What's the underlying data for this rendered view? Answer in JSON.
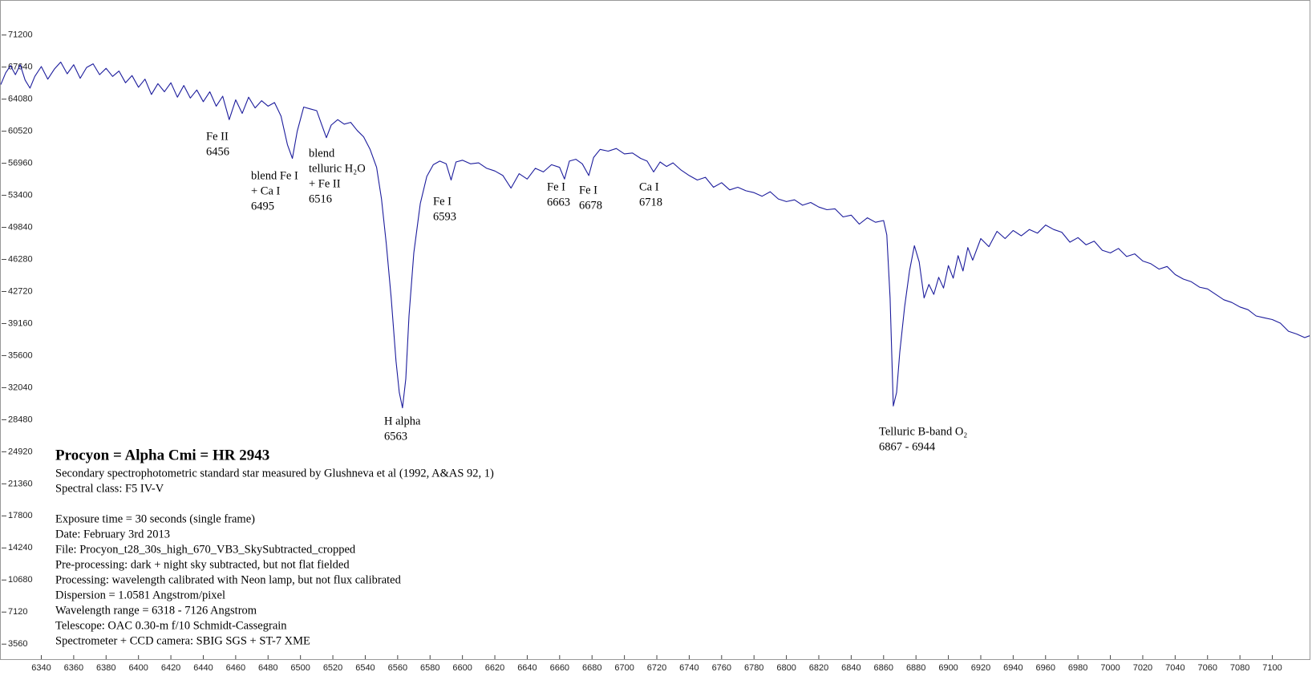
{
  "chart_data": {
    "type": "line",
    "title": "Procyon = Alpha Cmi = HR 2943",
    "notes": [
      "Secondary spectrophotometric standard star measured by Glushneva et al (1992, A&AS 92, 1)",
      "Spectral class: F5 IV-V",
      "Exposure time =  30 seconds (single frame)",
      "Date: February 3rd 2013",
      "File: Procyon_t28_30s_high_670_VB3_SkySubtracted_cropped",
      "Pre-processing: dark + night sky subtracted, but not flat fielded",
      "Processing: wavelength calibrated with Neon lamp, but not flux calibrated",
      "Dispersion = 1.0581 Angstrom/pixel",
      "Wavelength range = 6318 - 7126 Angstrom",
      "Telescope: OAC 0.30-m  f/10 Schmidt-Cassegrain",
      "Spectrometer + CCD camera: SBIG SGS + ST-7 XME"
    ],
    "annotations": [
      {
        "lines": [
          "Fe II",
          "6456"
        ]
      },
      {
        "lines": [
          "blend Fe I",
          "+ Ca I",
          "6495"
        ]
      },
      {
        "lines": [
          "blend",
          "telluric H₂O",
          "+ Fe II",
          "6516"
        ]
      },
      {
        "lines": [
          "Fe I",
          "6593"
        ]
      },
      {
        "lines": [
          "Fe I",
          "6663"
        ]
      },
      {
        "lines": [
          "Fe I",
          "6678"
        ]
      },
      {
        "lines": [
          "Ca I",
          "6718"
        ]
      },
      {
        "lines": [
          "H alpha",
          "6563"
        ]
      },
      {
        "lines": [
          "Telluric B-band O₂",
          "6867 - 6944"
        ]
      }
    ],
    "x": [
      6315,
      6318,
      6321,
      6324,
      6327,
      6330,
      6333,
      6336,
      6340,
      6344,
      6348,
      6352,
      6356,
      6360,
      6364,
      6368,
      6372,
      6376,
      6380,
      6384,
      6388,
      6392,
      6396,
      6400,
      6404,
      6408,
      6412,
      6416,
      6420,
      6424,
      6428,
      6432,
      6436,
      6440,
      6444,
      6448,
      6452,
      6456,
      6460,
      6464,
      6468,
      6472,
      6476,
      6480,
      6484,
      6488,
      6492,
      6495,
      6498,
      6502,
      6506,
      6510,
      6513,
      6516,
      6519,
      6523,
      6527,
      6531,
      6535,
      6539,
      6543,
      6547,
      6550,
      6553,
      6556,
      6559,
      6561,
      6563,
      6565,
      6567,
      6570,
      6574,
      6578,
      6582,
      6586,
      6590,
      6593,
      6596,
      6600,
      6605,
      6610,
      6615,
      6620,
      6625,
      6630,
      6635,
      6640,
      6645,
      6650,
      6655,
      6660,
      6663,
      6666,
      6670,
      6674,
      6678,
      6681,
      6685,
      6690,
      6695,
      6700,
      6705,
      6710,
      6714,
      6718,
      6722,
      6726,
      6730,
      6735,
      6740,
      6745,
      6750,
      6755,
      6760,
      6765,
      6770,
      6775,
      6780,
      6785,
      6790,
      6795,
      6800,
      6805,
      6810,
      6815,
      6820,
      6825,
      6830,
      6835,
      6840,
      6845,
      6850,
      6855,
      6860,
      6862,
      6864,
      6866,
      6868,
      6870,
      6873,
      6876,
      6879,
      6882,
      6885,
      6888,
      6891,
      6894,
      6897,
      6900,
      6903,
      6906,
      6909,
      6912,
      6915,
      6920,
      6925,
      6930,
      6935,
      6940,
      6945,
      6950,
      6955,
      6960,
      6965,
      6970,
      6975,
      6980,
      6985,
      6990,
      6995,
      7000,
      7005,
      7010,
      7015,
      7020,
      7025,
      7030,
      7035,
      7040,
      7045,
      7050,
      7055,
      7060,
      7065,
      7070,
      7075,
      7080,
      7085,
      7090,
      7095,
      7100,
      7105,
      7110,
      7115,
      7120,
      7123
    ],
    "series": [
      {
        "color": "#1c1c9c",
        "values": [
          65700,
          67000,
          67800,
          66800,
          67900,
          66200,
          65300,
          66600,
          67700,
          66300,
          67400,
          68200,
          66900,
          67900,
          66400,
          67600,
          68000,
          66800,
          67500,
          66600,
          67200,
          65900,
          66700,
          65400,
          66300,
          64600,
          65800,
          64900,
          65900,
          64300,
          65600,
          64200,
          65100,
          63800,
          64900,
          63300,
          64400,
          61800,
          64000,
          62500,
          64300,
          63100,
          63900,
          63300,
          63700,
          62200,
          59000,
          57500,
          60500,
          63200,
          63000,
          62800,
          61300,
          59800,
          61200,
          61800,
          61300,
          61500,
          60600,
          59900,
          58500,
          56500,
          53000,
          48000,
          42000,
          35000,
          31500,
          29800,
          33000,
          40000,
          47000,
          52500,
          55500,
          56800,
          57200,
          56900,
          55100,
          57100,
          57300,
          56900,
          57000,
          56400,
          56100,
          55600,
          54200,
          55800,
          55200,
          56400,
          56000,
          56800,
          56500,
          55200,
          57200,
          57400,
          56900,
          55600,
          57600,
          58500,
          58300,
          58600,
          58000,
          58100,
          57500,
          57200,
          56000,
          57100,
          56600,
          57000,
          56200,
          55600,
          55100,
          55400,
          54300,
          54800,
          54000,
          54300,
          53900,
          53700,
          53300,
          53800,
          53000,
          52700,
          52900,
          52300,
          52600,
          52100,
          51800,
          51900,
          51000,
          51200,
          50200,
          50900,
          50400,
          50600,
          49000,
          42000,
          30000,
          31500,
          36000,
          41000,
          45000,
          47800,
          46000,
          42000,
          43500,
          42400,
          44300,
          43100,
          45600,
          44200,
          46700,
          45000,
          47600,
          46200,
          48600,
          47700,
          49400,
          48600,
          49500,
          48900,
          49600,
          49200,
          50100,
          49600,
          49300,
          48200,
          48700,
          47900,
          48300,
          47300,
          47000,
          47500,
          46600,
          46900,
          46100,
          45800,
          45200,
          45500,
          44600,
          44100,
          43800,
          43200,
          43000,
          42400,
          41800,
          41500,
          41000,
          40700,
          40000,
          39800,
          39600,
          39200,
          38300,
          38000,
          37600,
          37800
        ]
      }
    ],
    "xlim": [
      6315,
      7123
    ],
    "ylim": [
      1890,
      75000
    ],
    "xticks": [
      6340,
      6360,
      6380,
      6400,
      6420,
      6440,
      6460,
      6480,
      6500,
      6520,
      6540,
      6560,
      6580,
      6600,
      6620,
      6640,
      6660,
      6680,
      6700,
      6720,
      6740,
      6760,
      6780,
      6800,
      6820,
      6840,
      6860,
      6880,
      6900,
      6920,
      6940,
      6960,
      6980,
      7000,
      7020,
      7040,
      7060,
      7080,
      7100
    ],
    "yticks": [
      3560,
      7120,
      10680,
      14240,
      17800,
      21360,
      24920,
      28480,
      32040,
      35600,
      39160,
      42720,
      46280,
      49840,
      53400,
      56960,
      60520,
      64080,
      67640,
      71200
    ],
    "grid": false
  }
}
